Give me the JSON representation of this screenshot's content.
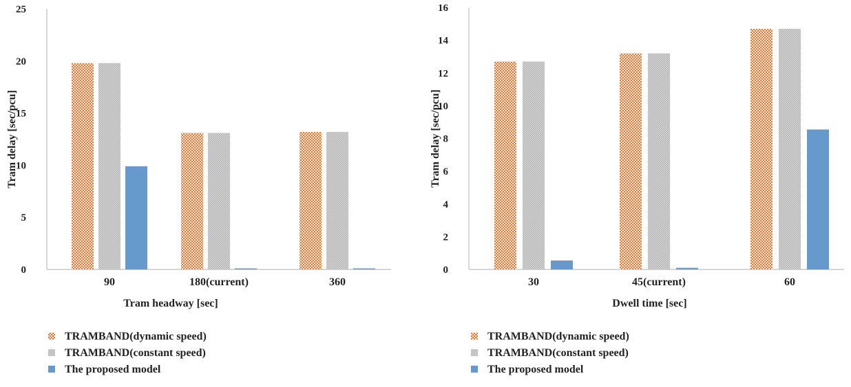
{
  "chart_data": [
    {
      "type": "bar",
      "xlabel": "Tram headway [sec]",
      "ylabel": "Tram delay [sec/pcu]",
      "categories": [
        "90",
        "180(current)",
        "360"
      ],
      "ylim": [
        0,
        25
      ],
      "yticks": [
        "0",
        "5",
        "10",
        "15",
        "20",
        "25"
      ],
      "grid": false,
      "legend_position": "bottom",
      "series": [
        {
          "name": "TRAMBAND(dynamic speed)",
          "values": [
            19.8,
            13.1,
            13.2
          ],
          "color": "#e59a66",
          "pattern": "dots"
        },
        {
          "name": "TRAMBAND(constant speed)",
          "values": [
            19.8,
            13.1,
            13.2
          ],
          "color": "#c8c8c8",
          "pattern": "gray"
        },
        {
          "name": "The proposed model",
          "values": [
            9.9,
            0.1,
            0.1
          ],
          "color": "#6699cc",
          "pattern": "solid"
        }
      ]
    },
    {
      "type": "bar",
      "xlabel": "Dwell time [sec]",
      "ylabel": "Tram delay [sec/pcu]",
      "categories": [
        "30",
        "45(current)",
        "60"
      ],
      "ylim": [
        0,
        16
      ],
      "yticks": [
        "0",
        "2",
        "4",
        "6",
        "8",
        "10",
        "12",
        "14",
        "16"
      ],
      "grid": false,
      "legend_position": "bottom",
      "series": [
        {
          "name": "TRAMBAND(dynamic speed)",
          "values": [
            12.7,
            13.2,
            14.7
          ],
          "color": "#e59a66",
          "pattern": "dots"
        },
        {
          "name": "TRAMBAND(constant speed)",
          "values": [
            12.7,
            13.2,
            14.7
          ],
          "color": "#c8c8c8",
          "pattern": "gray"
        },
        {
          "name": "The proposed model",
          "values": [
            0.55,
            0.1,
            8.55
          ],
          "color": "#6699cc",
          "pattern": "solid"
        }
      ]
    }
  ]
}
